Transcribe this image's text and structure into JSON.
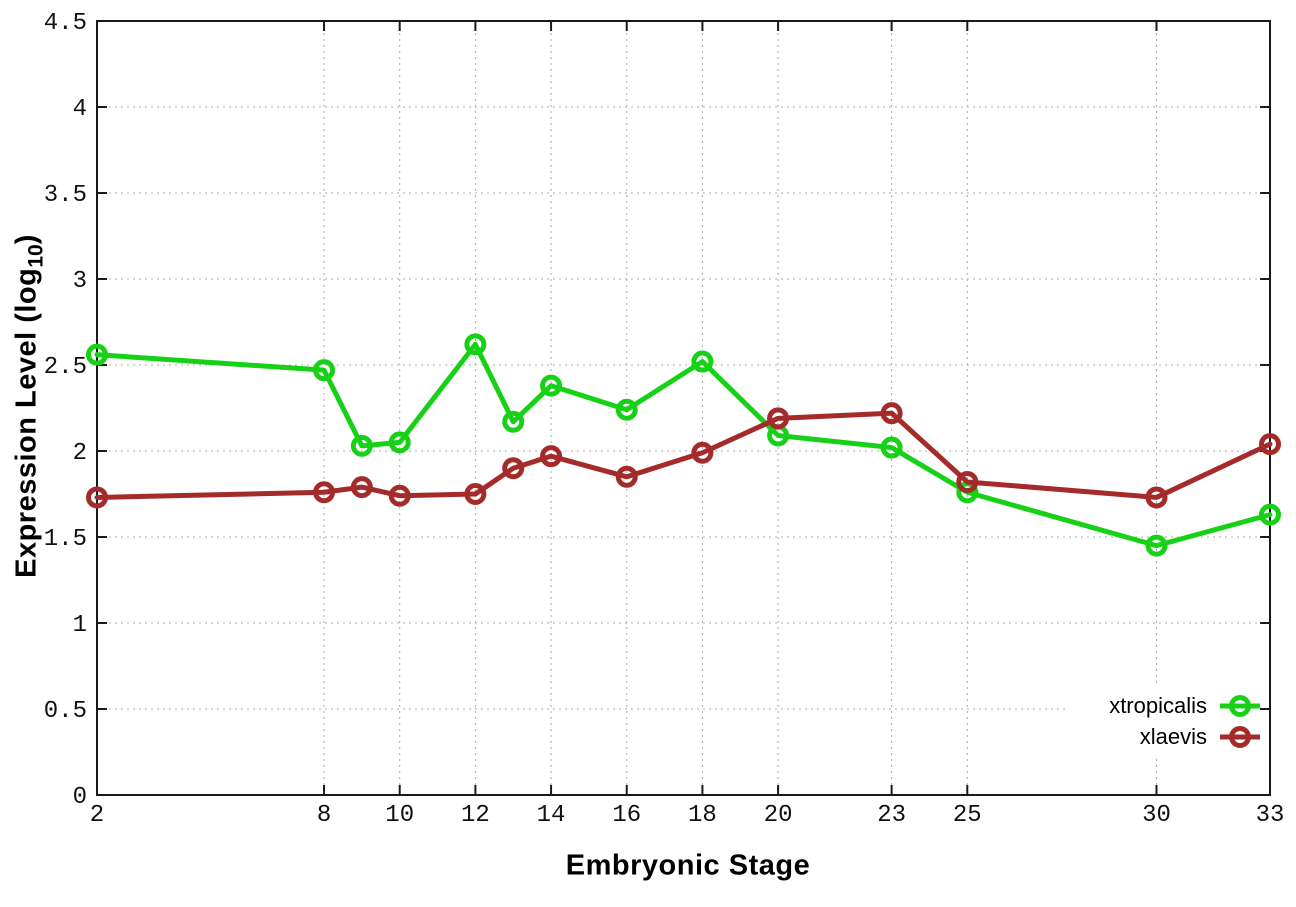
{
  "titles": {
    "xlabel": "Embryonic Stage",
    "ylabel_prefix": "Expression Level (log",
    "ylabel_sub": "10",
    "ylabel_suffix": ")"
  },
  "chart_data": {
    "type": "line",
    "title": "",
    "xlabel": "Embryonic Stage",
    "ylabel": "Expression Level (log10)",
    "x": [
      2,
      8,
      9,
      10,
      12,
      13,
      14,
      16,
      18,
      20,
      23,
      25,
      30,
      33
    ],
    "series": [
      {
        "name": "xtropicalis",
        "color": "#17d117",
        "marker": "open-circle",
        "values": [
          2.56,
          2.47,
          2.03,
          2.05,
          2.62,
          2.17,
          2.38,
          2.24,
          2.52,
          2.09,
          2.02,
          1.76,
          1.45,
          1.63
        ]
      },
      {
        "name": "xlaevis",
        "color": "#a52a2a",
        "marker": "open-circle",
        "values": [
          1.73,
          1.76,
          1.79,
          1.74,
          1.75,
          1.9,
          1.97,
          1.85,
          1.99,
          2.19,
          2.22,
          1.82,
          1.73,
          2.04
        ]
      }
    ],
    "xlim": [
      2,
      33
    ],
    "ylim": [
      0,
      4.5
    ],
    "x_ticks": [
      2,
      8,
      10,
      12,
      14,
      16,
      18,
      20,
      23,
      25,
      30,
      33
    ],
    "y_ticks": [
      0,
      0.5,
      1,
      1.5,
      2,
      2.5,
      3,
      3.5,
      4,
      4.5
    ],
    "grid": true,
    "legend_position": "inside-bottom-right",
    "axis_color": "#1a1a1a",
    "grid_color": "#ababab"
  }
}
